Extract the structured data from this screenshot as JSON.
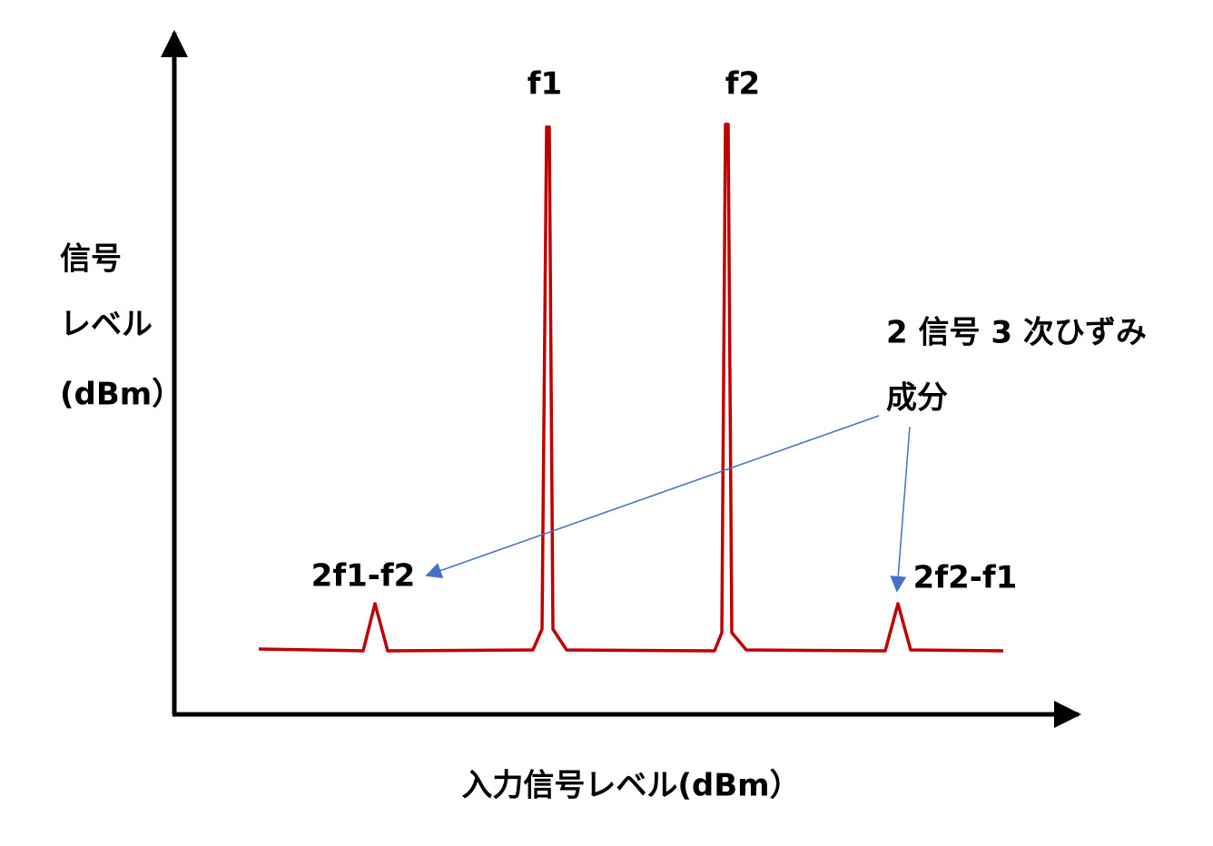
{
  "y_axis_label": [
    "信号",
    "レベル",
    "(dBm）"
  ],
  "x_axis_label": "入力信号レベル(dBm）",
  "signals": [
    "f1",
    "f2"
  ],
  "distortion": {
    "title": [
      "2 信号 3 次ひずみ",
      "成分"
    ],
    "products": [
      "2f1-f2",
      "2f2-f1"
    ]
  }
}
